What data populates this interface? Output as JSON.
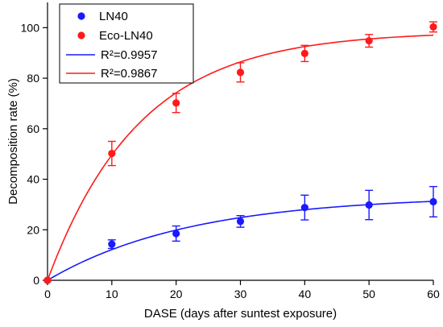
{
  "chart_data": {
    "type": "scatter",
    "xlabel": "DASE (days after suntest exposure)",
    "ylabel": "Decomposition rate (%)",
    "xlim": [
      0,
      60
    ],
    "ylim": [
      0,
      110
    ],
    "xticks": [
      0,
      10,
      20,
      30,
      40,
      50,
      60
    ],
    "yticks": [
      0,
      20,
      40,
      60,
      80,
      100
    ],
    "grid": false,
    "legend_position": "top-left",
    "series": [
      {
        "name": "LN40",
        "color": "#1a1aff",
        "x": [
          0,
          10,
          20,
          30,
          40,
          50,
          60
        ],
        "y": [
          0,
          14.3,
          18.5,
          23.3,
          28.8,
          29.8,
          31.1
        ],
        "error": [
          0,
          1.7,
          3.0,
          2.3,
          4.9,
          5.8,
          6.0
        ]
      },
      {
        "name": "Eco-LN40",
        "color": "#ff1a1a",
        "x": [
          0,
          10,
          20,
          30,
          40,
          50,
          60
        ],
        "y": [
          0,
          50.2,
          70.2,
          82.3,
          89.8,
          94.8,
          100.3
        ],
        "error": [
          0,
          4.8,
          3.8,
          3.8,
          3.2,
          2.5,
          2.0
        ]
      }
    ],
    "fits": [
      {
        "label": "R²=0.9957",
        "color": "#1a1aff",
        "asymptote": 33.5,
        "rate": 0.045
      },
      {
        "label": "R²=0.9867",
        "color": "#ff1a1a",
        "asymptote": 98.5,
        "rate": 0.07
      }
    ]
  }
}
